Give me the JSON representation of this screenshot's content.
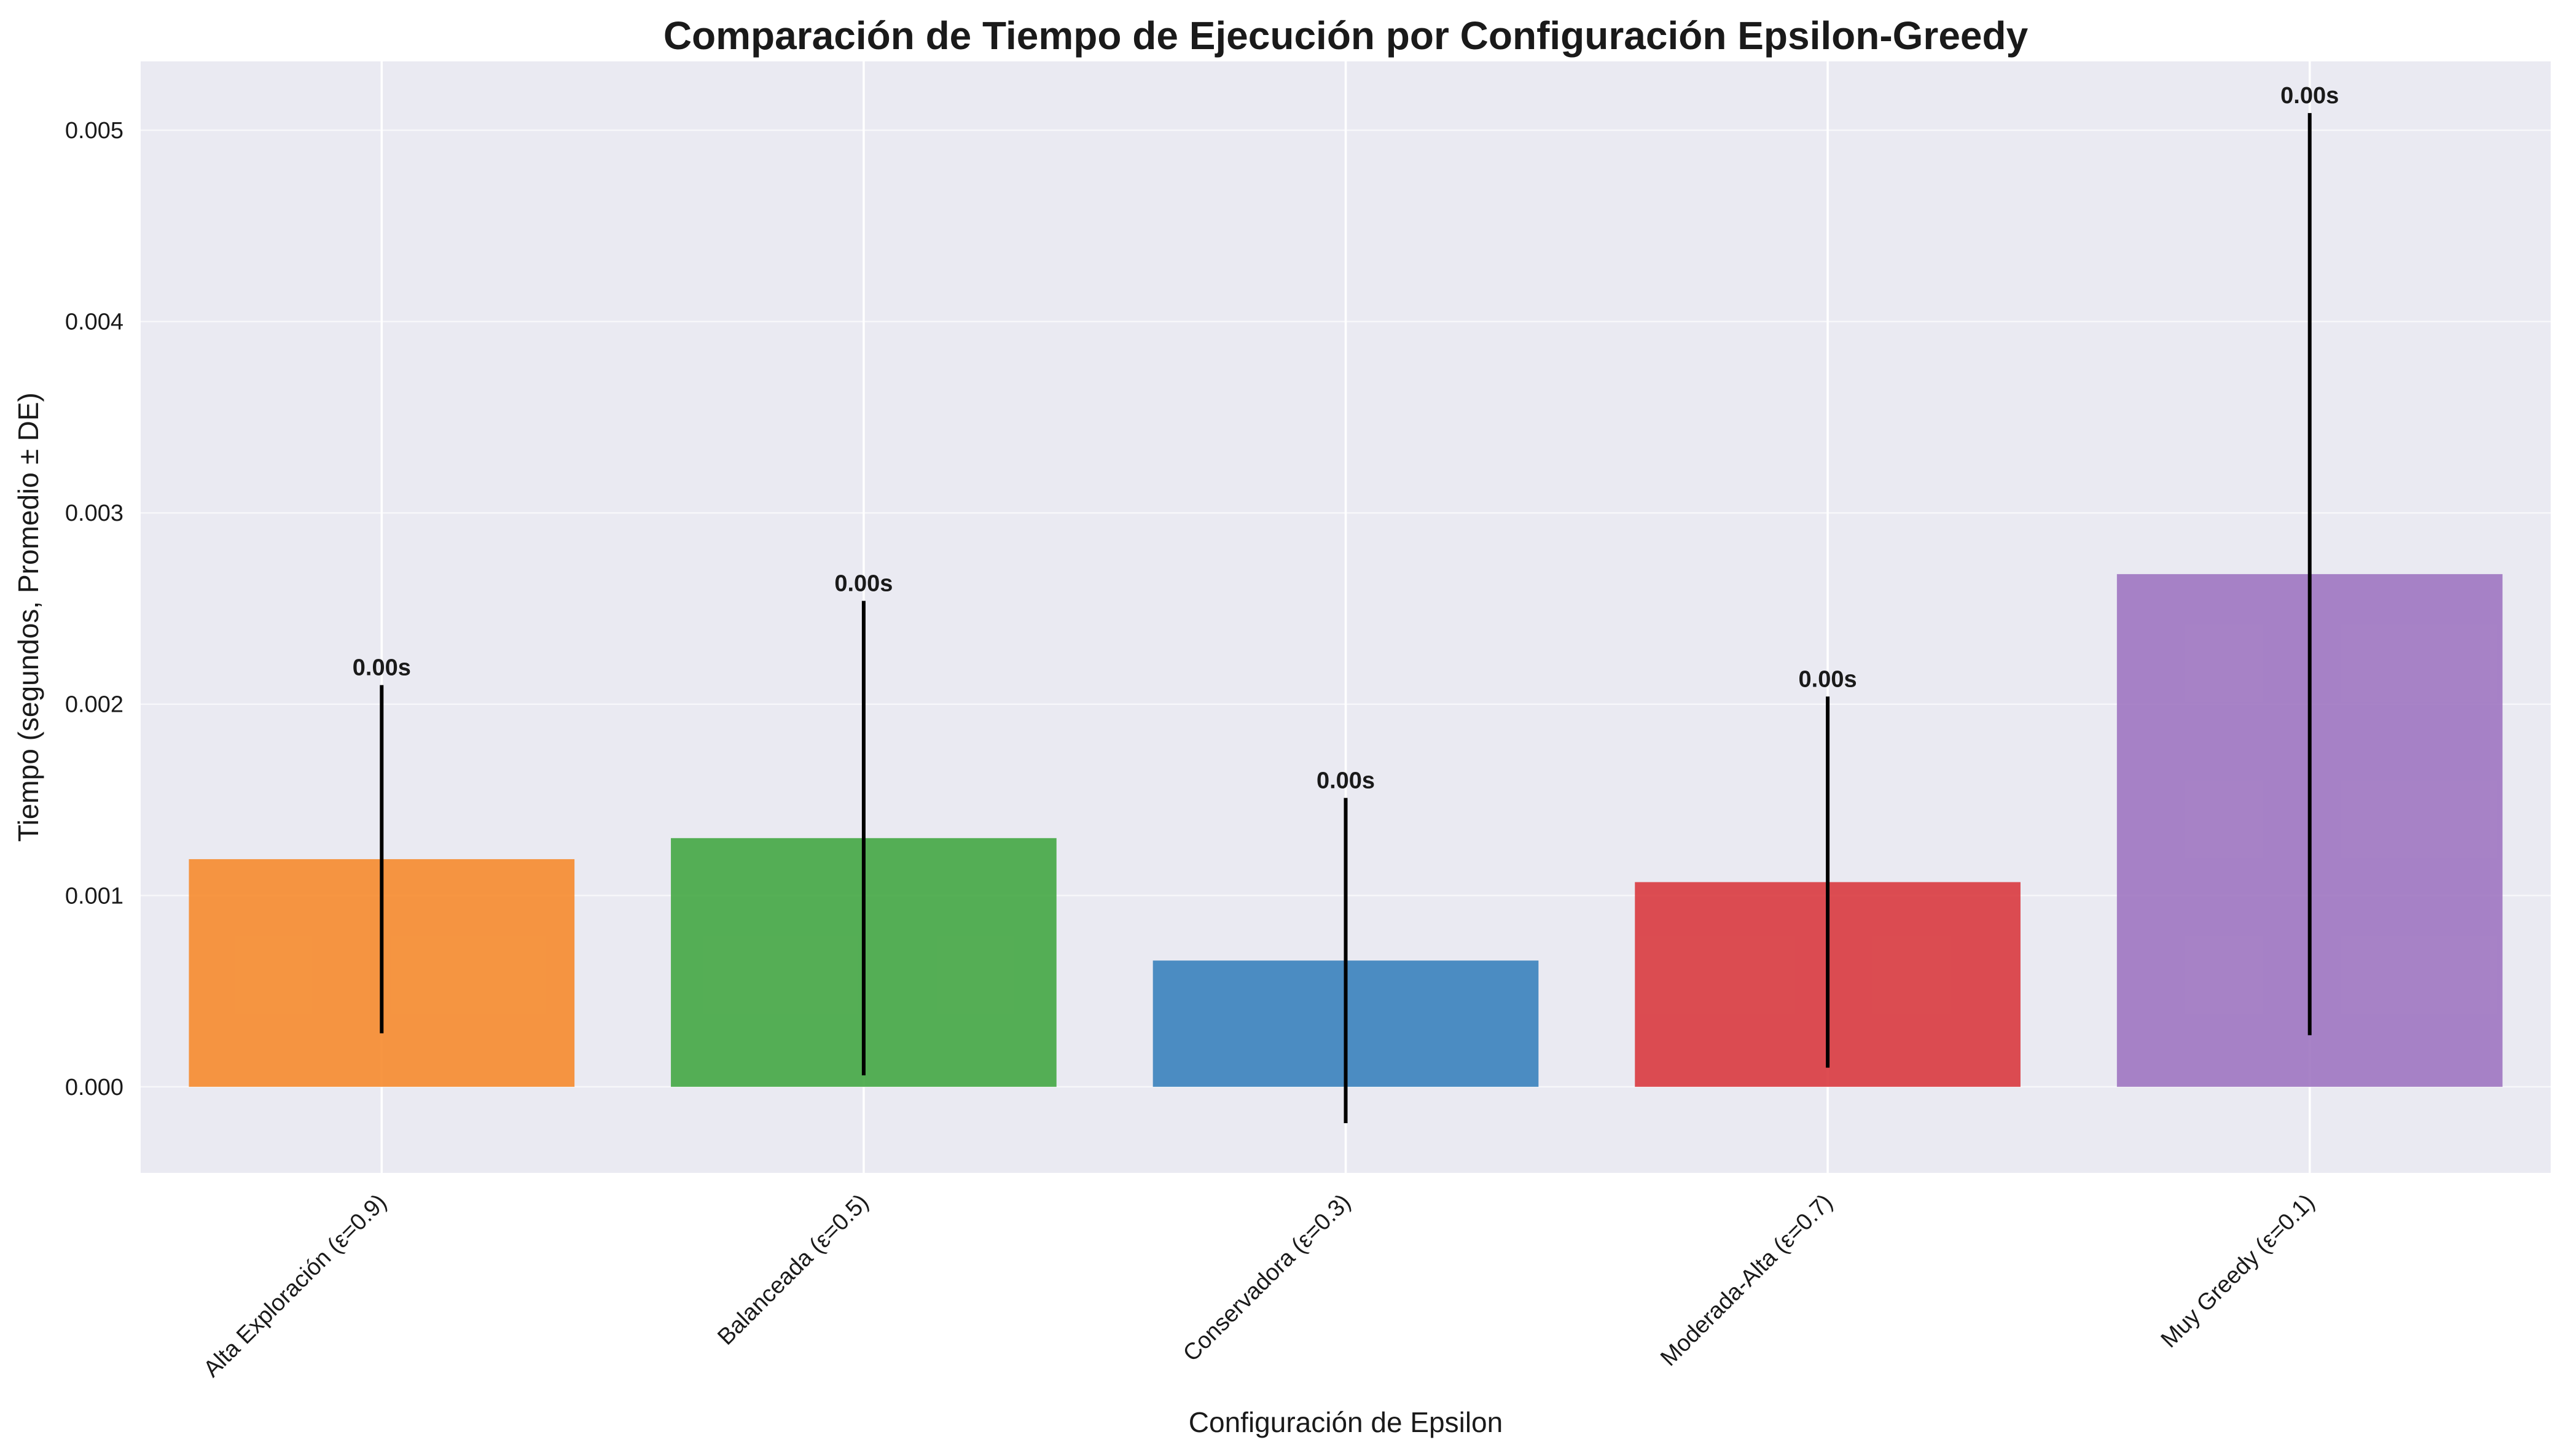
{
  "chart_data": {
    "type": "bar",
    "title": "Comparación de Tiempo de Ejecución por Configuración Epsilon-Greedy",
    "xlabel": "Configuración de Epsilon",
    "ylabel": "Tiempo (segundos, Promedio ± DE)",
    "categories": [
      "Alta Exploración (ε=0.9)",
      "Balanceada (ε=0.5)",
      "Conservadora (ε=0.3)",
      "Moderada-Alta (ε=0.7)",
      "Muy Greedy (ε=0.1)"
    ],
    "values": [
      0.00119,
      0.0013,
      0.00066,
      0.00107,
      0.00268
    ],
    "errors": [
      0.00091,
      0.00124,
      0.00085,
      0.00097,
      0.00241
    ],
    "data_labels": [
      "0.00s",
      "0.00s",
      "0.00s",
      "0.00s",
      "0.00s"
    ],
    "colors": [
      "#f68b2d",
      "#44a744",
      "#3a82bc",
      "#d93a3f",
      "#9f76c1"
    ],
    "ylim": [
      -0.00045,
      0.00536
    ],
    "yticks": [
      0.0,
      0.001,
      0.002,
      0.003,
      0.004,
      0.005
    ],
    "ytick_labels": [
      "0.000",
      "0.001",
      "0.002",
      "0.003",
      "0.004",
      "0.005"
    ],
    "grid": true,
    "background": "#eaeaf2"
  }
}
